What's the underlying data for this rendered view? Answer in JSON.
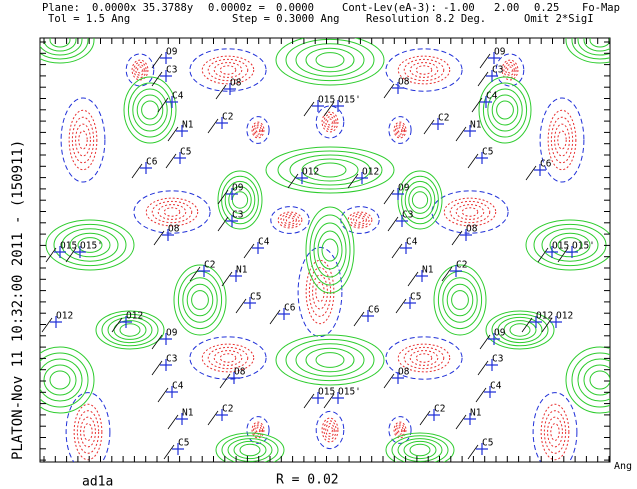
{
  "header": {
    "line1": [
      "Plane:",
      "0.0000x 35.3788y",
      "0.0000z =",
      "0.0000",
      "Cont-Lev(eA-3): -1.00",
      "2.00",
      "0.25",
      "Fo-Map"
    ],
    "line2": [
      "Tol = 1.5 Ang",
      "Step = 0.3000 Ang",
      "Resolution 8.2 Deg.",
      "Omit 2*SigI"
    ]
  },
  "side_label": "PLATON-Nov 11 10:32:00 2011 - (150911)",
  "footer": {
    "name": "ad1a",
    "r": "R = 0.02",
    "unit": "Ang"
  },
  "atoms": [
    "O9",
    "C3",
    "C4",
    "N1",
    "C2",
    "C5",
    "C6",
    "O8",
    "O15",
    "O15'",
    "O8",
    "O9",
    "C3",
    "C4",
    "N1",
    "C2",
    "C5",
    "C6",
    "O12",
    "O12",
    "O9",
    "O9",
    "C3",
    "C3",
    "O8",
    "O8",
    "C4",
    "C4",
    "C2",
    "C2",
    "N1",
    "N1",
    "O15",
    "O15'",
    "O15",
    "O15'",
    "C5",
    "C5",
    "C6",
    "C6",
    "O12",
    "O12",
    "O12",
    "O12",
    "O9",
    "O9",
    "C3",
    "C3",
    "O8",
    "O8",
    "C4",
    "C4",
    "O15",
    "O15'",
    "N1",
    "N1",
    "C2",
    "C2",
    "C5",
    "C5"
  ]
}
